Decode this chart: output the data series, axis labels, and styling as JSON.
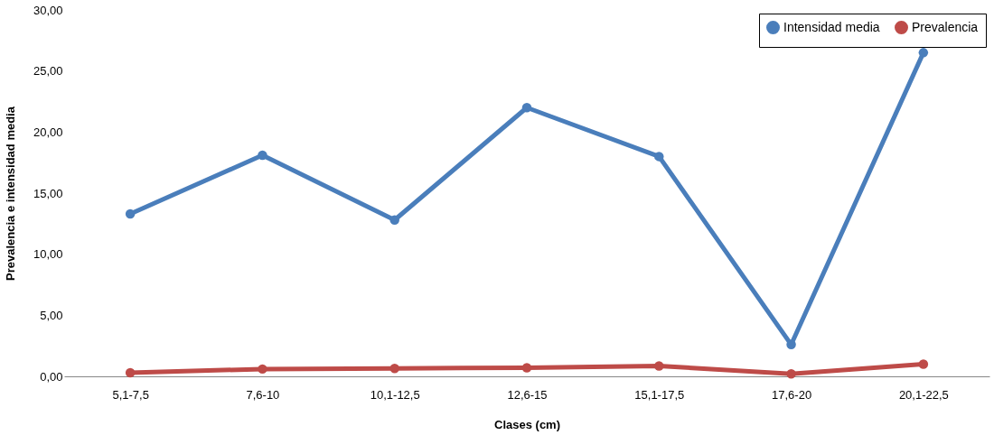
{
  "chart_data": {
    "type": "line",
    "xlabel": "Clases (cm)",
    "ylabel": "Prevalencia e intensidad media",
    "categories": [
      "5,1-7,5",
      "7,6-10",
      "10,1-12,5",
      "12,6-15",
      "15,1-17,5",
      "17,6-20",
      "20,1-22,5"
    ],
    "series": [
      {
        "name": "Intensidad media",
        "color": "#4a7ebb",
        "values": [
          13.3,
          18.1,
          12.8,
          22.0,
          18.0,
          2.6,
          26.5
        ]
      },
      {
        "name": "Prevalencia",
        "color": "#be4b48",
        "values": [
          0.3,
          0.6,
          0.65,
          0.7,
          0.85,
          0.2,
          1.0
        ]
      }
    ],
    "ylim": [
      0,
      30
    ],
    "yticks": [
      {
        "value": 0,
        "label": "0,00"
      },
      {
        "value": 5,
        "label": "5,00"
      },
      {
        "value": 10,
        "label": "10,00"
      },
      {
        "value": 15,
        "label": "15,00"
      },
      {
        "value": 20,
        "label": "20,00"
      },
      {
        "value": 25,
        "label": "25,00"
      },
      {
        "value": 30,
        "label": "30,00"
      }
    ],
    "grid": false,
    "legend": "top right",
    "marker": "circle",
    "line_style": "solid"
  }
}
